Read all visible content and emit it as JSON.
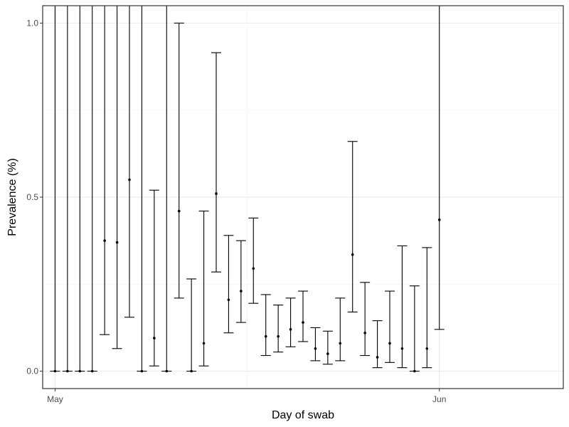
{
  "chart_data": {
    "type": "scatter",
    "title": "",
    "xlabel": "Day of swab",
    "ylabel": "Prevalence (%)",
    "x_tick_labels": [
      "May",
      "Jun"
    ],
    "y_tick_labels": [
      "0.0",
      "0.5",
      "1.0"
    ],
    "xlim": [
      "2020-04-30",
      "2020-06-11"
    ],
    "ylim": [
      -0.05,
      1.05
    ],
    "y_ticks": [
      0.0,
      0.5,
      1.0
    ],
    "grid": true,
    "error_bars": true,
    "colors": {
      "points": "#000000",
      "error_bars": "#000000",
      "grid_major": "#ebebeb",
      "grid_minor": "#f3f3f3",
      "panel_border": "#333333",
      "tick_text": "#4d4d4d"
    },
    "series": [
      {
        "points": [
          {
            "x": "2020-05-01",
            "y": 0.0,
            "lower": 0.0,
            "upper": 1.05
          },
          {
            "x": "2020-05-02",
            "y": 0.0,
            "lower": 0.0,
            "upper": 1.05
          },
          {
            "x": "2020-05-03",
            "y": 0.0,
            "lower": 0.0,
            "upper": 1.05
          },
          {
            "x": "2020-05-04",
            "y": 0.0,
            "lower": 0.0,
            "upper": 1.05
          },
          {
            "x": "2020-05-05",
            "y": 0.375,
            "lower": 0.105,
            "upper": 1.05
          },
          {
            "x": "2020-05-06",
            "y": 0.37,
            "lower": 0.065,
            "upper": 1.05
          },
          {
            "x": "2020-05-07",
            "y": 0.55,
            "lower": 0.155,
            "upper": 1.05
          },
          {
            "x": "2020-05-08",
            "y": 0.0,
            "lower": 0.0,
            "upper": 1.05
          },
          {
            "x": "2020-05-09",
            "y": 0.095,
            "lower": 0.015,
            "upper": 0.52
          },
          {
            "x": "2020-05-10",
            "y": 0.0,
            "lower": 0.0,
            "upper": 1.05
          },
          {
            "x": "2020-05-11",
            "y": 0.46,
            "lower": 0.21,
            "upper": 1.0
          },
          {
            "x": "2020-05-12",
            "y": 0.0,
            "lower": 0.0,
            "upper": 0.265
          },
          {
            "x": "2020-05-13",
            "y": 0.08,
            "lower": 0.015,
            "upper": 0.46
          },
          {
            "x": "2020-05-14",
            "y": 0.51,
            "lower": 0.285,
            "upper": 0.915
          },
          {
            "x": "2020-05-15",
            "y": 0.205,
            "lower": 0.11,
            "upper": 0.39
          },
          {
            "x": "2020-05-16",
            "y": 0.23,
            "lower": 0.14,
            "upper": 0.375
          },
          {
            "x": "2020-05-17",
            "y": 0.295,
            "lower": 0.195,
            "upper": 0.44
          },
          {
            "x": "2020-05-18",
            "y": 0.1,
            "lower": 0.045,
            "upper": 0.22
          },
          {
            "x": "2020-05-19",
            "y": 0.1,
            "lower": 0.055,
            "upper": 0.19
          },
          {
            "x": "2020-05-20",
            "y": 0.12,
            "lower": 0.07,
            "upper": 0.21
          },
          {
            "x": "2020-05-21",
            "y": 0.14,
            "lower": 0.085,
            "upper": 0.23
          },
          {
            "x": "2020-05-22",
            "y": 0.065,
            "lower": 0.03,
            "upper": 0.125
          },
          {
            "x": "2020-05-23",
            "y": 0.05,
            "lower": 0.02,
            "upper": 0.115
          },
          {
            "x": "2020-05-24",
            "y": 0.08,
            "lower": 0.03,
            "upper": 0.21
          },
          {
            "x": "2020-05-25",
            "y": 0.335,
            "lower": 0.17,
            "upper": 0.66
          },
          {
            "x": "2020-05-26",
            "y": 0.11,
            "lower": 0.045,
            "upper": 0.255
          },
          {
            "x": "2020-05-27",
            "y": 0.04,
            "lower": 0.01,
            "upper": 0.145
          },
          {
            "x": "2020-05-28",
            "y": 0.08,
            "lower": 0.025,
            "upper": 0.23
          },
          {
            "x": "2020-05-29",
            "y": 0.065,
            "lower": 0.01,
            "upper": 0.36
          },
          {
            "x": "2020-05-30",
            "y": 0.0,
            "lower": 0.0,
            "upper": 0.245
          },
          {
            "x": "2020-05-31",
            "y": 0.065,
            "lower": 0.01,
            "upper": 0.355
          },
          {
            "x": "2020-06-01",
            "y": 0.435,
            "lower": 0.12,
            "upper": 1.05
          }
        ]
      }
    ]
  }
}
